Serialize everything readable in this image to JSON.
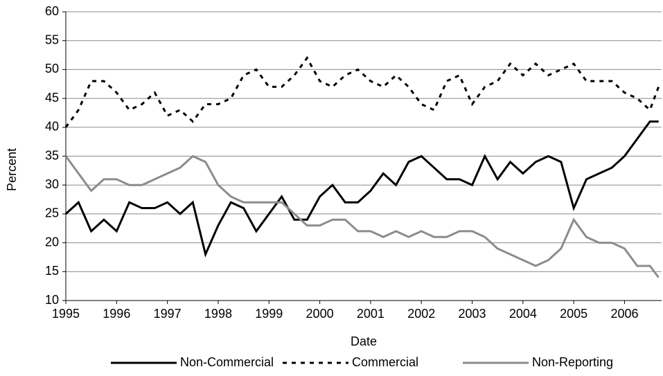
{
  "chart_data": {
    "type": "line",
    "x_label": "Date",
    "y_label": "Percent",
    "x": [
      1995,
      1995.25,
      1995.5,
      1995.75,
      1996,
      1996.25,
      1996.5,
      1996.75,
      1997,
      1997.25,
      1997.5,
      1997.75,
      1998,
      1998.25,
      1998.5,
      1998.75,
      1999,
      1999.25,
      1999.5,
      1999.75,
      2000,
      2000.25,
      2000.5,
      2000.75,
      2001,
      2001.25,
      2001.5,
      2001.75,
      2002,
      2002.25,
      2002.5,
      2002.75,
      2003,
      2003.25,
      2003.5,
      2003.75,
      2004,
      2004.25,
      2004.5,
      2004.75,
      2005,
      2005.25,
      2005.5,
      2005.75,
      2006,
      2006.25,
      2006.5,
      2006.67
    ],
    "series": [
      {
        "name": "Non-Commercial",
        "color": "#000000",
        "dash": "solid",
        "values": [
          25,
          27,
          22,
          24,
          22,
          27,
          26,
          26,
          27,
          25,
          27,
          18,
          23,
          27,
          26,
          22,
          25,
          28,
          24,
          24,
          28,
          30,
          27,
          27,
          29,
          32,
          30,
          34,
          35,
          33,
          31,
          31,
          30,
          35,
          31,
          34,
          32,
          34,
          35,
          34,
          26,
          31,
          32,
          33,
          35,
          38,
          41,
          41
        ]
      },
      {
        "name": "Commercial",
        "color": "#000000",
        "dash": "dashed",
        "values": [
          40,
          43,
          48,
          48,
          46,
          43,
          44,
          46,
          42,
          43,
          41,
          44,
          44,
          45,
          49,
          50,
          47,
          47,
          49,
          52,
          48,
          47,
          49,
          50,
          48,
          47,
          49,
          47,
          44,
          43,
          48,
          49,
          44,
          47,
          48,
          51,
          49,
          51,
          49,
          50,
          51,
          48,
          48,
          48,
          46,
          45,
          43,
          47
        ]
      },
      {
        "name": "Non-Reporting",
        "color": "#8c8c8c",
        "dash": "solid",
        "values": [
          35,
          32,
          29,
          31,
          31,
          30,
          30,
          31,
          32,
          33,
          35,
          34,
          30,
          28,
          27,
          27,
          27,
          27,
          25,
          23,
          23,
          24,
          24,
          22,
          22,
          21,
          22,
          21,
          22,
          21,
          21,
          22,
          22,
          21,
          19,
          18,
          17,
          16,
          17,
          19,
          24,
          21,
          20,
          20,
          19,
          16,
          16,
          14
        ]
      }
    ],
    "xlim": [
      1995,
      2006.73
    ],
    "xticks": [
      1995,
      1996,
      1997,
      1998,
      1999,
      2000,
      2001,
      2002,
      2003,
      2004,
      2005,
      2006
    ],
    "ylim": [
      10,
      60
    ],
    "yticks": [
      10,
      15,
      20,
      25,
      30,
      35,
      40,
      45,
      50,
      55,
      60
    ],
    "grid": true,
    "legend": "bottom"
  }
}
